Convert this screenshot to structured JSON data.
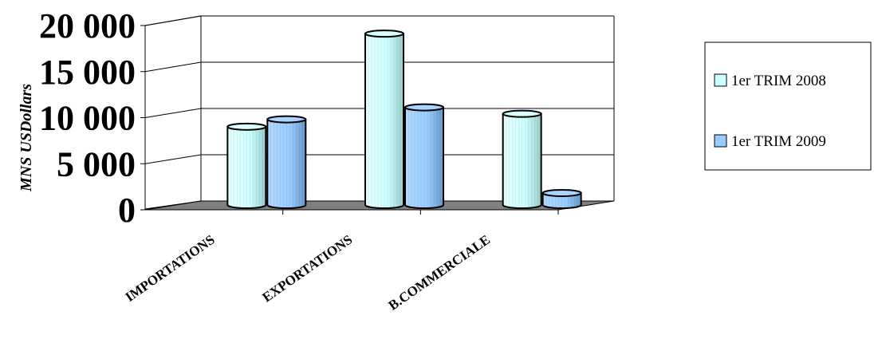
{
  "chart_data": {
    "type": "bar",
    "style": "3d-cylinder",
    "categories": [
      "IMPORTATIONS",
      "EXPORTATIONS",
      "B.COMMERCIALE"
    ],
    "series": [
      {
        "name": "1er TRIM  2008",
        "values": [
          8500,
          18600,
          9900
        ],
        "color": "#ccffff"
      },
      {
        "name": "1er TRIM  2009",
        "values": [
          9300,
          10600,
          1300
        ],
        "color": "#99ccff"
      }
    ],
    "ylabel": "MNS USDollars",
    "ylim": [
      0,
      20000
    ],
    "yticks": [
      "0",
      "5 000",
      "10 000",
      "15 000",
      "20 000"
    ],
    "grid": true,
    "legend_position": "right",
    "floor_color": "#808080"
  }
}
